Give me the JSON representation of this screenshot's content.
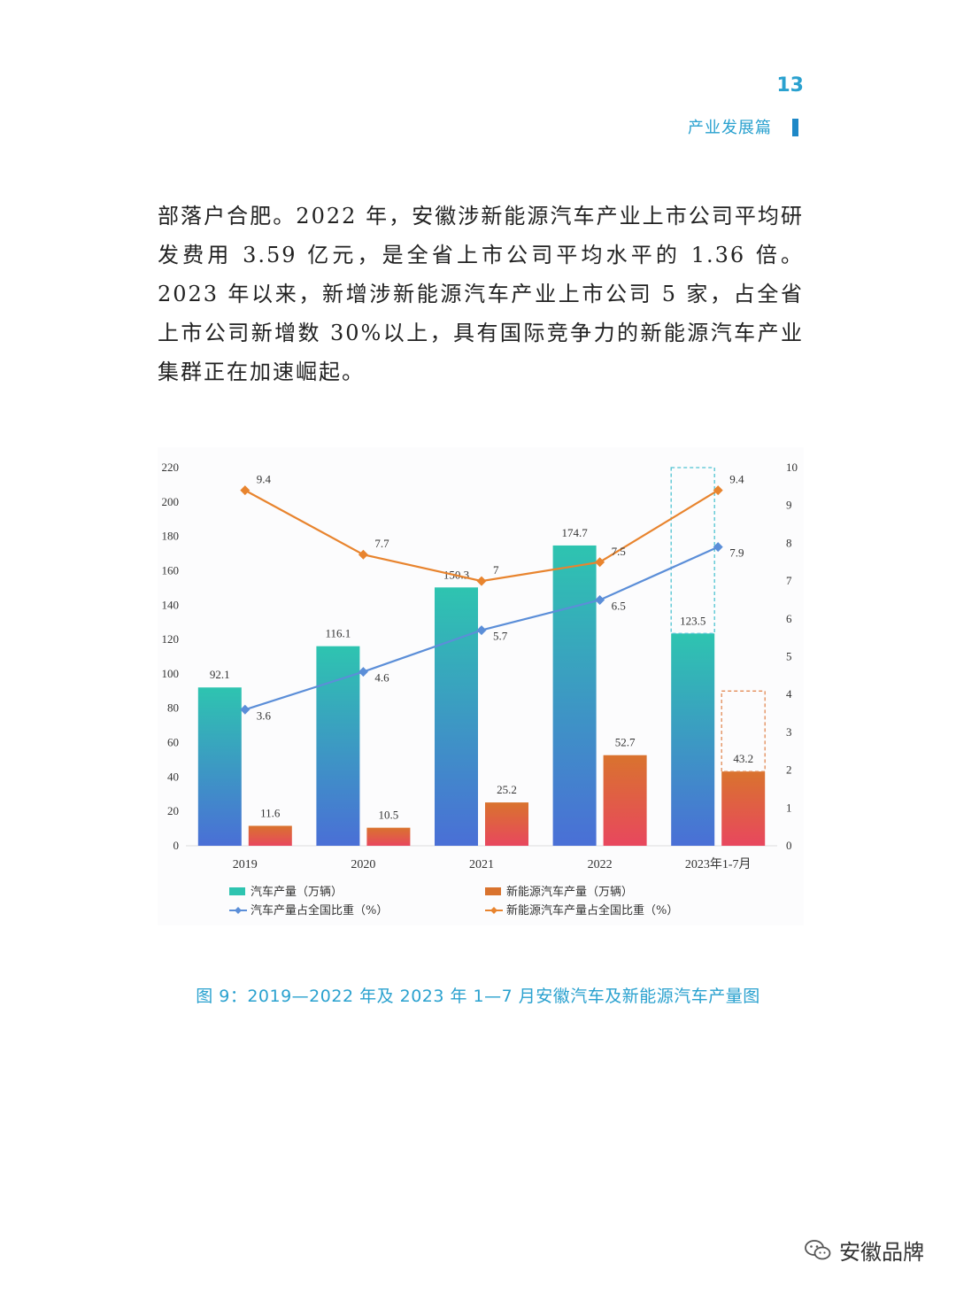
{
  "header": {
    "page_number": "13",
    "section_title": "产业发展篇"
  },
  "body": {
    "paragraph": "部落户合肥。2022 年，安徽涉新能源汽车产业上市公司平均研发费用 3.59 亿元，是全省上市公司平均水平的 1.36 倍。2023 年以来，新增涉新能源汽车产业上市公司 5 家，占全省上市公司新增数 30%以上，具有国际竞争力的新能源汽车产业集群正在加速崛起。"
  },
  "chart_data": {
    "type": "bar",
    "categories": [
      "2019",
      "2020",
      "2021",
      "2022",
      "2023年1-7月"
    ],
    "y_left": {
      "ticks": [
        0,
        20,
        40,
        60,
        80,
        100,
        120,
        140,
        160,
        180,
        200,
        220
      ],
      "ylim": [
        0,
        220
      ]
    },
    "y_right": {
      "ticks": [
        0,
        1,
        2,
        3,
        4,
        5,
        6,
        7,
        8,
        9,
        10
      ],
      "ylim": [
        0,
        10
      ]
    },
    "series": [
      {
        "name": "汽车产量（万辆）",
        "type": "bar",
        "axis": "left",
        "values": [
          92.1,
          116.1,
          150.3,
          174.7,
          123.5
        ],
        "color_top": "#2ec4b0",
        "color_bottom": "#4a6fd6"
      },
      {
        "name": "新能源汽车产量（万辆）",
        "type": "bar",
        "axis": "left",
        "values": [
          11.6,
          10.5,
          25.2,
          52.7,
          43.2
        ],
        "color_top": "#d9732e",
        "color_bottom": "#e8475e"
      },
      {
        "name": "汽车产量占全国比重（%）",
        "type": "line",
        "axis": "right",
        "values": [
          3.6,
          4.6,
          5.7,
          6.5,
          7.9
        ],
        "color": "#5b8ed8"
      },
      {
        "name": "新能源汽车产量占全国比重（%）",
        "type": "line",
        "axis": "right",
        "values": [
          9.4,
          7.7,
          7,
          7.5,
          9.4
        ],
        "color": "#e8842e"
      }
    ],
    "grid": false,
    "legend_position": "bottom"
  },
  "caption": "图 9：2019—2022 年及 2023 年 1—7 月安徽汽车及新能源汽车产量图",
  "watermark": {
    "label": "安徽品牌",
    "icon": "wechat-icon"
  }
}
